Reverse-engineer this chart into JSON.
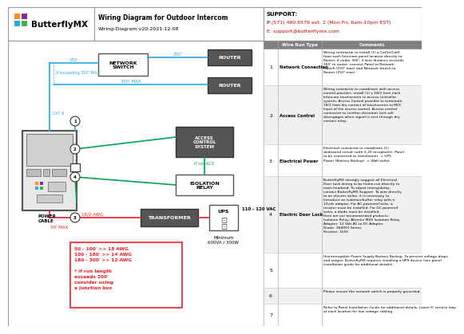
{
  "title": "Wiring Diagram for Outdoor Intercom",
  "subtitle": "Wiring-Diagram-v20-2021-12-08",
  "support_title": "SUPPORT:",
  "support_phone_prefix": "P: ",
  "support_phone": "(571) 480.6579 ext. 2 (Mon-Fri, 6am-10pm EST)",
  "support_email": "E: support@butterflymx.com",
  "bg_color": "#ffffff",
  "cyan_color": "#29abe2",
  "green_color": "#00a651",
  "red_color": "#ed1c24",
  "dark_box_bg": "#58595b",
  "logo_colors": [
    "#f7941d",
    "#92278f",
    "#29abe2",
    "#39b54a"
  ],
  "wire_run_rows": [
    {
      "num": "1",
      "type": "Network Connection",
      "comment": "Wiring contractor to install (1) a Cat5e/Cat6\nfrom each Intercom panel location directly to\nRouter. If under 300', if wire distance exceeds\n300' to router, connect Panel to Network\nSwitch (250' max) and Network Switch to\nRouter (250' max)."
    },
    {
      "num": "2",
      "type": "Access Control",
      "comment": "Wiring contractor to coordinate with access\ncontrol provider, install (1) x 18/2 from each\nIntercom touchscreen to access controller\nsystem. Access Control provider to terminate\n18/2 from dry contact of touchscreen to REX\nInput of the access control. Access control\ncontractor to confirm electronic lock will\ndisengages when signal is sent through dry\ncontact relay."
    },
    {
      "num": "3",
      "type": "Electrical Power",
      "comment": "Electrical contractor to coordinate (1)\ndedicated circuit (with 3-20 receptacle). Panel\nto be connected to transformer -> UPS\nPower (Battery Backup) -> Wall outlet"
    },
    {
      "num": "4",
      "type": "Electric Door Lock",
      "comment": "ButterflyMX strongly suggest all Electrical\nDoor Lock wiring to be home-run directly to\nmain headend. To adjust timing/delay,\ncontact ButterflyMX Support. To wire directly\nto an electric strike, it is necessary to\nIntroduce an isolation/buffer relay with a\n12vdc adapter. For AC-powered locks, a\nresistor must be installed. For DC-powered\nlocks, a diode must be installed.\nHere are our recommended products:\nIsolation Relay: Altronix IR05 Isolation Relay\nAdapter: 12 Volt AC to DC Adapter\nDiode: 1N4001 Series\nResistor: 1k50"
    },
    {
      "num": "5",
      "type": "",
      "comment": "Uninterruptible Power Supply Battery Backup. To prevent voltage drops\nand surges, ButterflyMX requires installing a UPS device (see panel\ninstallation guide for additional details)."
    },
    {
      "num": "6",
      "type": "",
      "comment": "Please ensure the network switch is properly grounded."
    },
    {
      "num": "7",
      "type": "",
      "comment": "Refer to Panel Installation Guide for additional details. Leave 6' service loop\nat each location for low voltage cabling."
    }
  ]
}
